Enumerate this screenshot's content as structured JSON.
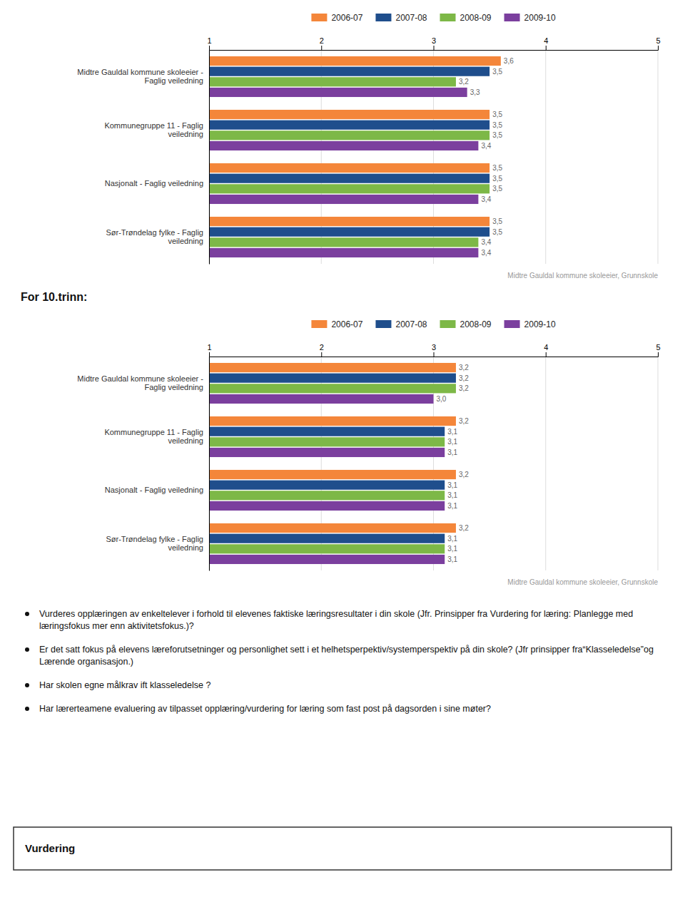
{
  "chart_data": [
    {
      "type": "bar",
      "orientation": "horizontal",
      "categories": [
        "Midtre Gauldal kommune skoleeier -\nFaglig veiledning",
        "Kommunegruppe 11 - Faglig\nveiledning",
        "Nasjonalt - Faglig veiledning",
        "Sør-Trøndelag fylke - Faglig\nveiledning"
      ],
      "series": [
        {
          "name": "2006-07",
          "color": "#F4863A",
          "values": [
            3.6,
            3.5,
            3.5,
            3.5
          ],
          "value_labels": [
            "3,6",
            "3,5",
            "3,5",
            "3,5"
          ]
        },
        {
          "name": "2007-08",
          "color": "#1F4E8C",
          "values": [
            3.5,
            3.5,
            3.5,
            3.5
          ],
          "value_labels": [
            "3,5",
            "3,5",
            "3,5",
            "3,5"
          ]
        },
        {
          "name": "2008-09",
          "color": "#7DB847",
          "values": [
            3.2,
            3.5,
            3.5,
            3.4
          ],
          "value_labels": [
            "3,2",
            "3,5",
            "3,5",
            "3,4"
          ]
        },
        {
          "name": "2009-10",
          "color": "#7B3F9E",
          "values": [
            3.3,
            3.4,
            3.4,
            3.4
          ],
          "value_labels": [
            "3,3",
            "3,4",
            "3,4",
            "3,4"
          ]
        }
      ],
      "xlim": [
        1,
        5
      ],
      "xticks": [
        1,
        2,
        3,
        4,
        5
      ],
      "grid": true,
      "legend": "top",
      "data_labels": true,
      "annotations": [
        "Midtre Gauldal kommune skoleeier, Grunnskole"
      ]
    },
    {
      "type": "bar",
      "orientation": "horizontal",
      "title": "For 10.trinn:",
      "categories": [
        "Midtre Gauldal kommune skoleeier -\nFaglig veiledning",
        "Kommunegruppe 11 - Faglig\nveiledning",
        "Nasjonalt - Faglig veiledning",
        "Sør-Trøndelag fylke - Faglig\nveiledning"
      ],
      "series": [
        {
          "name": "2006-07",
          "color": "#F4863A",
          "values": [
            3.2,
            3.2,
            3.2,
            3.2
          ],
          "value_labels": [
            "3,2",
            "3,2",
            "3,2",
            "3,2"
          ]
        },
        {
          "name": "2007-08",
          "color": "#1F4E8C",
          "values": [
            3.2,
            3.1,
            3.1,
            3.1
          ],
          "value_labels": [
            "3,2",
            "3,1",
            "3,1",
            "3,1"
          ]
        },
        {
          "name": "2008-09",
          "color": "#7DB847",
          "values": [
            3.2,
            3.1,
            3.1,
            3.1
          ],
          "value_labels": [
            "3,2",
            "3,1",
            "3,1",
            "3,1"
          ]
        },
        {
          "name": "2009-10",
          "color": "#7B3F9E",
          "values": [
            3.0,
            3.1,
            3.1,
            3.1
          ],
          "value_labels": [
            "3,0",
            "3,1",
            "3,1",
            "3,1"
          ]
        }
      ],
      "xlim": [
        1,
        5
      ],
      "xticks": [
        1,
        2,
        3,
        4,
        5
      ],
      "grid": true,
      "legend": "top",
      "data_labels": true,
      "annotations": [
        "Midtre Gauldal kommune skoleeier, Grunnskole"
      ]
    }
  ],
  "notes": [
    "Vurderes opplæringen av enkeltelever i forhold til elevenes faktiske læringsresultater i din skole (Jfr. Prinsipper fra Vurdering for læring: Planlegge med læringsfokus mer enn aktivitetsfokus.)?",
    "Er det satt fokus på elevens læreforutsetninger og personlighet sett i et helhetsperpektiv/systemperspektiv på din skole? (Jfr prinsipper fra“Klasseledelse”og Lærende organisasjon.)",
    "Har skolen egne målkrav ift klasseledelse ?",
    "Har lærerteamene evaluering av tilpasset opplæring/vurdering for læring som fast post på dagsorden i sine møter?"
  ],
  "footer": "Vurdering"
}
